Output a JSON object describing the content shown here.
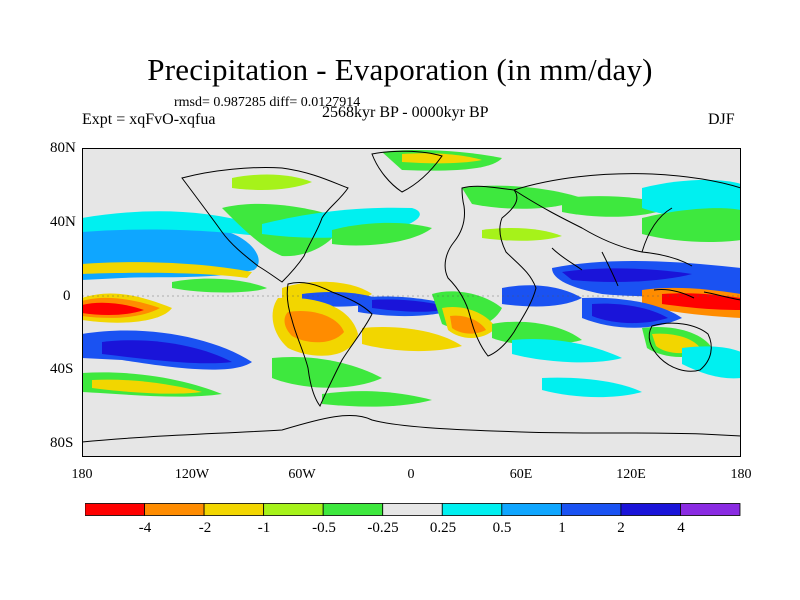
{
  "title": "Precipitation - Evaporation (in mm/day)",
  "stats": "rmsd= 0.987285 diff= 0.0127914",
  "period": "2568kyr BP - 0000kyr BP",
  "experiment": "Expt = xqFvO-xqfua",
  "season": "DJF",
  "y_axis": [
    "80N",
    "40N",
    "0",
    "40S",
    "80S"
  ],
  "x_axis": [
    "180",
    "120W",
    "60W",
    "0",
    "60E",
    "120E",
    "180"
  ],
  "colorbar": {
    "labels": [
      "-4",
      "-2",
      "-1",
      "-0.5",
      "-0.25",
      "0.25",
      "0.5",
      "1",
      "2",
      "4"
    ],
    "colors": [
      "#ff0000",
      "#ff8c00",
      "#f2d600",
      "#a6f21a",
      "#3ee83e",
      "#e6e6e6",
      "#00f0f0",
      "#0fa6ff",
      "#1a52f2",
      "#1a14d9",
      "#8a2be2"
    ]
  },
  "map": {
    "background": "#e6e6e6",
    "coast_color": "#000000"
  }
}
